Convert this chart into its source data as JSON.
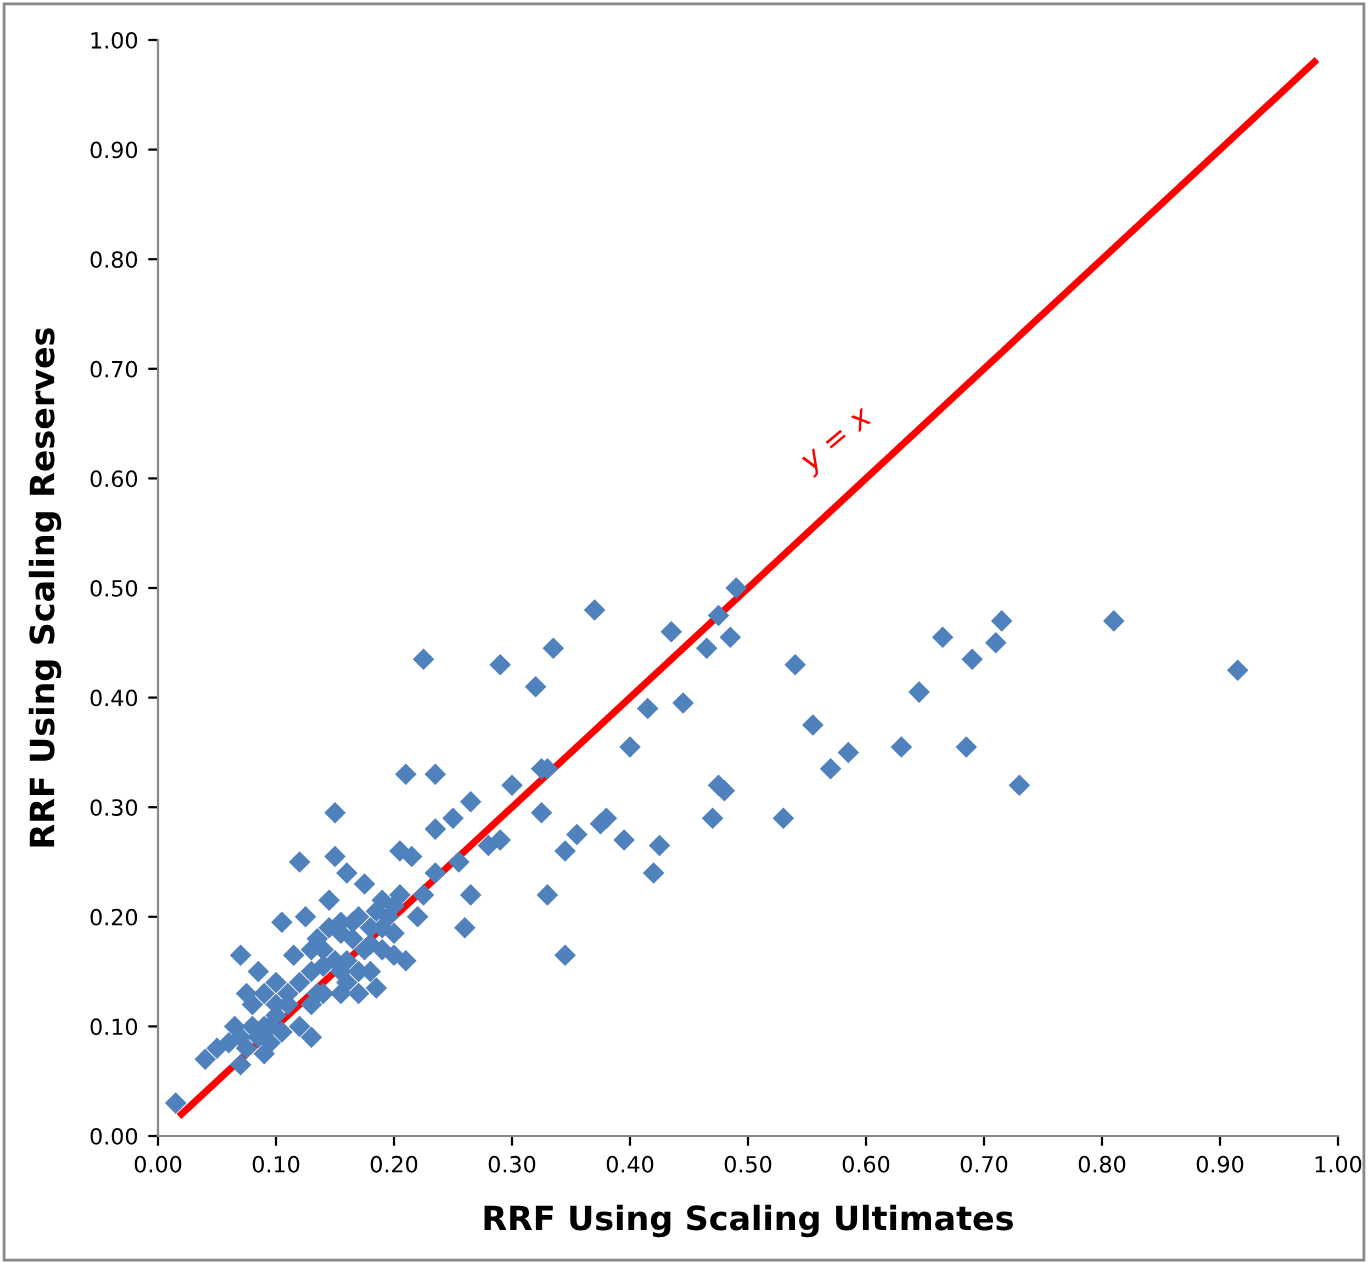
{
  "chart_data": {
    "type": "scatter",
    "xlabel": "RRF Using Scaling Ultimates",
    "ylabel": "RRF Using Scaling Reserves",
    "xlim": [
      0,
      1
    ],
    "ylim": [
      0,
      1
    ],
    "xticks": [
      {
        "value": 0,
        "label": "0.00"
      },
      {
        "value": 0.1,
        "label": "0.10"
      },
      {
        "value": 0.2,
        "label": "0.20"
      },
      {
        "value": 0.3,
        "label": "0.30"
      },
      {
        "value": 0.4,
        "label": "0.40"
      },
      {
        "value": 0.5,
        "label": "0.50"
      },
      {
        "value": 0.6,
        "label": "0.60"
      },
      {
        "value": 0.7,
        "label": "0.70"
      },
      {
        "value": 0.8,
        "label": "0.80"
      },
      {
        "value": 0.9,
        "label": "0.90"
      },
      {
        "value": 1,
        "label": "1.00"
      }
    ],
    "yticks": [
      {
        "value": 0,
        "label": "0.00"
      },
      {
        "value": 0.1,
        "label": "0.10"
      },
      {
        "value": 0.2,
        "label": "0.20"
      },
      {
        "value": 0.3,
        "label": "0.30"
      },
      {
        "value": 0.4,
        "label": "0.40"
      },
      {
        "value": 0.5,
        "label": "0.50"
      },
      {
        "value": 0.6,
        "label": "0.60"
      },
      {
        "value": 0.7,
        "label": "0.70"
      },
      {
        "value": 0.8,
        "label": "0.80"
      },
      {
        "value": 0.9,
        "label": "0.90"
      },
      {
        "value": 1,
        "label": "1.00"
      }
    ],
    "grid": false,
    "annotations": [
      "y = x"
    ],
    "series": [
      {
        "color": "#4f81bd",
        "marker": "diamond",
        "x": [
          0.915,
          0.81,
          0.73,
          0.715,
          0.71,
          0.69,
          0.685,
          0.665,
          0.645,
          0.63,
          0.585,
          0.57,
          0.555,
          0.54,
          0.53,
          0.49,
          0.485,
          0.48,
          0.475,
          0.475,
          0.47,
          0.465,
          0.445,
          0.435,
          0.425,
          0.42,
          0.415,
          0.4,
          0.395,
          0.38,
          0.375,
          0.37,
          0.355,
          0.345,
          0.345,
          0.335,
          0.33,
          0.33,
          0.325,
          0.325,
          0.32,
          0.3,
          0.29,
          0.29,
          0.28,
          0.265,
          0.265,
          0.26,
          0.255,
          0.25,
          0.235,
          0.235,
          0.235,
          0.225,
          0.21,
          0.215,
          0.205,
          0.205,
          0.2,
          0.195,
          0.19,
          0.19,
          0.185,
          0.18,
          0.175,
          0.17,
          0.165,
          0.16,
          0.16,
          0.155,
          0.15,
          0.15,
          0.145,
          0.14,
          0.135,
          0.13,
          0.125,
          0.12,
          0.115,
          0.11,
          0.105,
          0.1,
          0.1,
          0.095,
          0.09,
          0.09,
          0.085,
          0.08,
          0.075,
          0.07,
          0.07,
          0.065,
          0.06,
          0.05,
          0.04,
          0.015,
          0.13,
          0.12,
          0.14,
          0.15,
          0.16,
          0.17,
          0.18,
          0.2,
          0.21,
          0.22,
          0.225,
          0.19,
          0.12,
          0.11,
          0.1,
          0.09,
          0.085,
          0.08,
          0.075,
          0.07,
          0.13,
          0.105,
          0.095,
          0.13,
          0.145,
          0.155,
          0.165,
          0.175,
          0.185,
          0.2,
          0.18,
          0.17,
          0.155,
          0.135,
          0.14,
          0.155
        ],
        "values": [
          0.425,
          0.47,
          0.32,
          0.47,
          0.45,
          0.435,
          0.355,
          0.455,
          0.405,
          0.355,
          0.35,
          0.335,
          0.375,
          0.43,
          0.29,
          0.5,
          0.455,
          0.315,
          0.475,
          0.32,
          0.29,
          0.445,
          0.395,
          0.46,
          0.265,
          0.24,
          0.39,
          0.355,
          0.27,
          0.29,
          0.285,
          0.48,
          0.275,
          0.165,
          0.26,
          0.445,
          0.335,
          0.22,
          0.335,
          0.295,
          0.41,
          0.32,
          0.43,
          0.27,
          0.265,
          0.305,
          0.22,
          0.19,
          0.25,
          0.29,
          0.33,
          0.28,
          0.24,
          0.435,
          0.33,
          0.255,
          0.26,
          0.22,
          0.165,
          0.2,
          0.215,
          0.19,
          0.135,
          0.175,
          0.23,
          0.2,
          0.18,
          0.24,
          0.16,
          0.195,
          0.295,
          0.255,
          0.215,
          0.17,
          0.18,
          0.15,
          0.2,
          0.25,
          0.165,
          0.12,
          0.195,
          0.14,
          0.11,
          0.1,
          0.13,
          0.075,
          0.15,
          0.1,
          0.13,
          0.165,
          0.065,
          0.1,
          0.085,
          0.08,
          0.07,
          0.03,
          0.12,
          0.1,
          0.13,
          0.16,
          0.14,
          0.15,
          0.19,
          0.21,
          0.16,
          0.2,
          0.22,
          0.17,
          0.14,
          0.13,
          0.12,
          0.1,
          0.09,
          0.12,
          0.08,
          0.09,
          0.09,
          0.095,
          0.085,
          0.17,
          0.19,
          0.185,
          0.195,
          0.17,
          0.205,
          0.185,
          0.15,
          0.13,
          0.13,
          0.13,
          0.155,
          0.15
        ]
      },
      {
        "type": "line",
        "color": "#ff0000",
        "x": [
          0.02,
          0.98
        ],
        "values": [
          0.02,
          0.98
        ]
      }
    ]
  }
}
